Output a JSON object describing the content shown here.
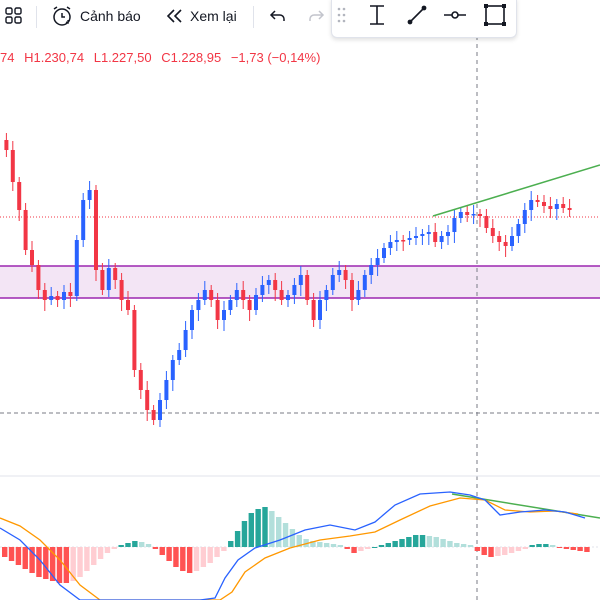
{
  "toolbar": {
    "alert_label": "Cảnh báo",
    "replay_label": "Xem lại"
  },
  "legend": {
    "open_tail": "74",
    "high": "H1.230,74",
    "low": "L1.227,50",
    "close": "C1.228,95",
    "change": "−1,73 (−0,14%)"
  },
  "colors": {
    "up": "#2962ff",
    "down": "#f23645",
    "zone_border": "#9c27b0",
    "zone_fill": "#f3e5f5",
    "trendline": "#4caf50",
    "macd_line": "#2962ff",
    "signal_line": "#ff9800",
    "hist_up_strong": "#26a69a",
    "hist_up_weak": "#b2dfdb",
    "hist_down_strong": "#ff5252",
    "hist_down_weak": "#ffcdd2"
  },
  "icons": [
    "layout-grid-icon",
    "alarm-clock-icon",
    "replay-icon",
    "undo-icon",
    "redo-icon",
    "drag-handle-icon",
    "text-cursor-icon",
    "trendline-tool-icon",
    "horizontal-ray-icon",
    "rectangle-tool-icon"
  ]
}
